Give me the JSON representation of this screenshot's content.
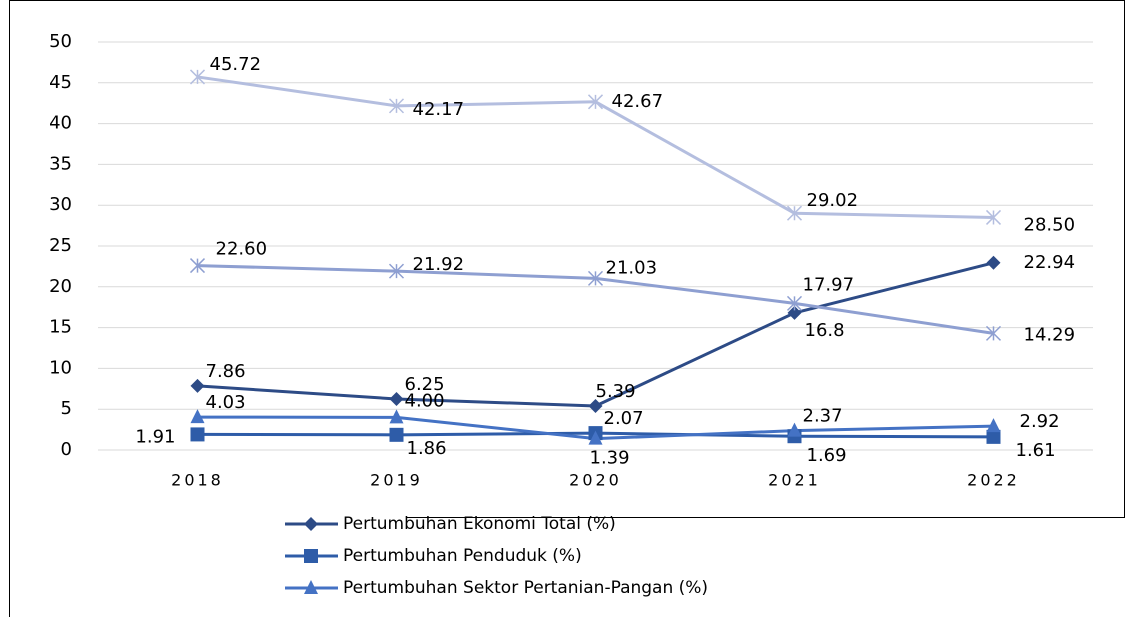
{
  "chart_data": {
    "type": "line",
    "categories": [
      "2018",
      "2019",
      "2020",
      "2021",
      "2022"
    ],
    "series": [
      {
        "name": "Pertumbuhan Ekonomi Total (%)",
        "color": "#2d4b86",
        "marker": "diamond",
        "values": [
          7.86,
          6.25,
          5.39,
          16.8,
          22.94
        ],
        "value_labels": [
          "7.86",
          "6.25",
          "5.39",
          "16.8",
          "22.94"
        ]
      },
      {
        "name": "Pertumbuhan Penduduk (%)",
        "color": "#2e5ca8",
        "marker": "square",
        "values": [
          1.91,
          1.86,
          2.07,
          1.69,
          1.61
        ],
        "value_labels": [
          "1.91",
          "1.86",
          "2.07",
          "1.69",
          "1.61"
        ]
      },
      {
        "name": "Pertumbuhan Sektor Pertanian-Pangan (%)",
        "color": "#4472c4",
        "marker": "triangle",
        "values": [
          4.03,
          4.0,
          1.39,
          2.37,
          2.92
        ],
        "value_labels": [
          "4.03",
          "4.00",
          "1.39",
          "2.37",
          "2.92"
        ]
      },
      {
        "color": "#b4bedf",
        "marker": "x",
        "values": [
          45.72,
          42.17,
          42.67,
          29.02,
          28.5
        ],
        "value_labels": [
          "45.72",
          "42.17",
          "42.67",
          "29.02",
          "28.50"
        ]
      },
      {
        "color": "#8e9fd1",
        "marker": "x",
        "values": [
          22.6,
          21.92,
          21.03,
          17.97,
          14.29
        ],
        "value_labels": [
          "22.60",
          "21.92",
          "21.03",
          "17.97",
          "14.29"
        ]
      }
    ],
    "ylim": [
      0,
      50
    ],
    "yticks": [
      0,
      5,
      10,
      15,
      20,
      25,
      30,
      35,
      40,
      45,
      50
    ],
    "grid": true
  }
}
